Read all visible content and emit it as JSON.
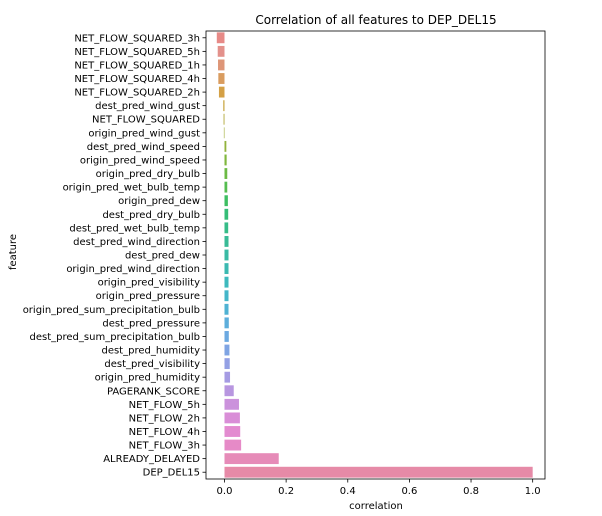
{
  "chart_data": {
    "type": "bar",
    "orientation": "horizontal",
    "title": "Correlation of all features to DEP_DEL15",
    "xlabel": "correlation",
    "ylabel": "feature",
    "xlim": [
      -0.06,
      1.04
    ],
    "xticks": [
      0.0,
      0.2,
      0.4,
      0.6,
      0.8,
      1.0
    ],
    "xtick_labels": [
      "0.0",
      "0.2",
      "0.4",
      "0.6",
      "0.8",
      "1.0"
    ],
    "grid": false,
    "categories": [
      "NET_FLOW_SQUARED_3h",
      "NET_FLOW_SQUARED_5h",
      "NET_FLOW_SQUARED_1h",
      "NET_FLOW_SQUARED_4h",
      "NET_FLOW_SQUARED_2h",
      "dest_pred_wind_gust",
      "NET_FLOW_SQUARED",
      "origin_pred_wind_gust",
      "dest_pred_wind_speed",
      "origin_pred_wind_speed",
      "origin_pred_dry_bulb",
      "origin_pred_wet_bulb_temp",
      "origin_pred_dew",
      "dest_pred_dry_bulb",
      "dest_pred_wet_bulb_temp",
      "dest_pred_wind_direction",
      "dest_pred_dew",
      "origin_pred_wind_direction",
      "origin_pred_visibility",
      "origin_pred_pressure",
      "origin_pred_sum_precipitation_bulb",
      "dest_pred_pressure",
      "dest_pred_sum_precipitation_bulb",
      "dest_pred_humidity",
      "dest_pred_visibility",
      "origin_pred_humidity",
      "PAGERANK_SCORE",
      "NET_FLOW_5h",
      "NET_FLOW_2h",
      "NET_FLOW_4h",
      "NET_FLOW_3h",
      "ALREADY_DELAYED",
      "DEP_DEL15"
    ],
    "values": [
      -0.025,
      -0.022,
      -0.021,
      -0.02,
      -0.018,
      -0.004,
      -0.003,
      -0.002,
      0.006,
      0.007,
      0.009,
      0.009,
      0.011,
      0.012,
      0.012,
      0.013,
      0.013,
      0.013,
      0.013,
      0.013,
      0.013,
      0.014,
      0.014,
      0.016,
      0.017,
      0.018,
      0.03,
      0.047,
      0.05,
      0.051,
      0.054,
      0.176,
      1.0
    ],
    "colors": [
      "#e78a87",
      "#e3918b",
      "#de9678",
      "#d99c5f",
      "#d4a046",
      "#c7a53f",
      "#b5aa3e",
      "#a3af3d",
      "#92b33c",
      "#80b73d",
      "#6cba44",
      "#55bd50",
      "#3dbe62",
      "#35bd77",
      "#36bc88",
      "#38bb96",
      "#39baa4",
      "#3bb9b1",
      "#3eb9bd",
      "#44b6c9",
      "#4fb2d3",
      "#5daedb",
      "#6ca9e1",
      "#7fa4e3",
      "#93a0e4",
      "#a59be3",
      "#b896e0",
      "#cb92dc",
      "#d98ed7",
      "#e38bd0",
      "#e68ac7",
      "#e68bb8",
      "#e68aa7"
    ]
  }
}
